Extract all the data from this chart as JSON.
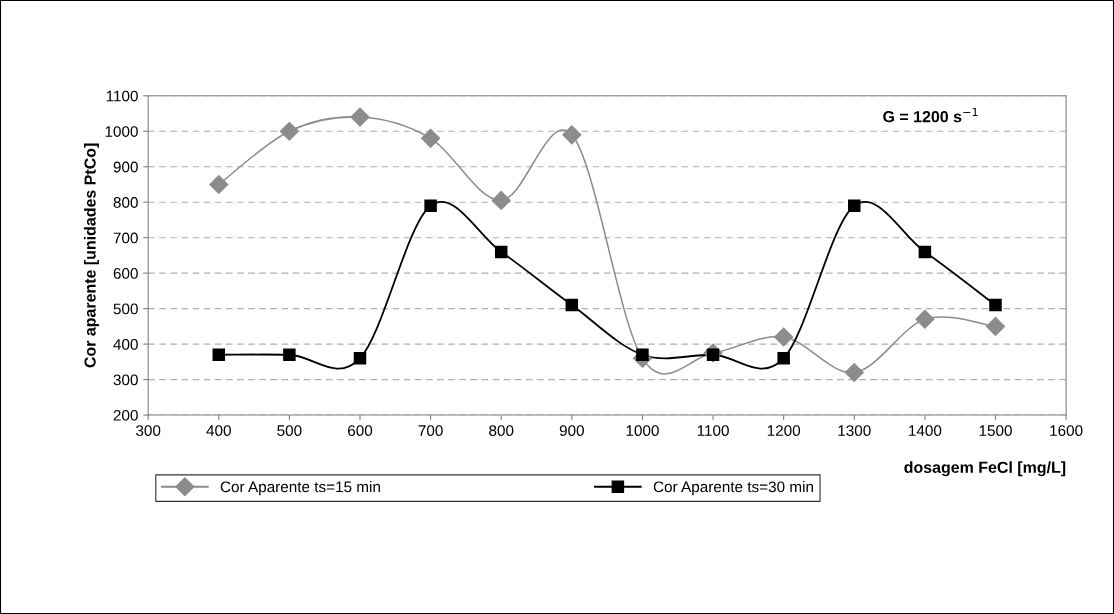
{
  "chart_data": {
    "type": "line",
    "xlabel": "dosagem FeCl [mg/L]",
    "ylabel": "Cor aparente [unidades PtCo]",
    "annotations": [
      "G = 1200 s$^{−1}$"
    ],
    "x": [
      400,
      500,
      600,
      700,
      800,
      900,
      1000,
      1100,
      1200,
      1300,
      1400,
      1500
    ],
    "series": [
      {
        "name": "Cor Aparente ts=15 min",
        "color": "#8c8c8c",
        "marker": "diamond",
        "values": [
          850,
          1000,
          1040,
          980,
          805,
          990,
          360,
          375,
          420,
          320,
          470,
          450
        ]
      },
      {
        "name": "Cor Aparente ts=30 min",
        "color": "#000000",
        "marker": "square",
        "values": [
          370,
          370,
          360,
          790,
          660,
          510,
          370,
          370,
          360,
          790,
          660,
          510
        ]
      }
    ],
    "xlim": [
      300,
      1600
    ],
    "xticks": [
      300,
      400,
      500,
      600,
      700,
      800,
      900,
      1000,
      1100,
      1200,
      1300,
      1400,
      1500,
      1600
    ],
    "ylim": [
      200,
      1100
    ],
    "yticks": [
      200,
      300,
      400,
      500,
      600,
      700,
      800,
      900,
      1000,
      1100
    ],
    "grid": "y",
    "legend": "bottom",
    "line_style": "solid"
  }
}
